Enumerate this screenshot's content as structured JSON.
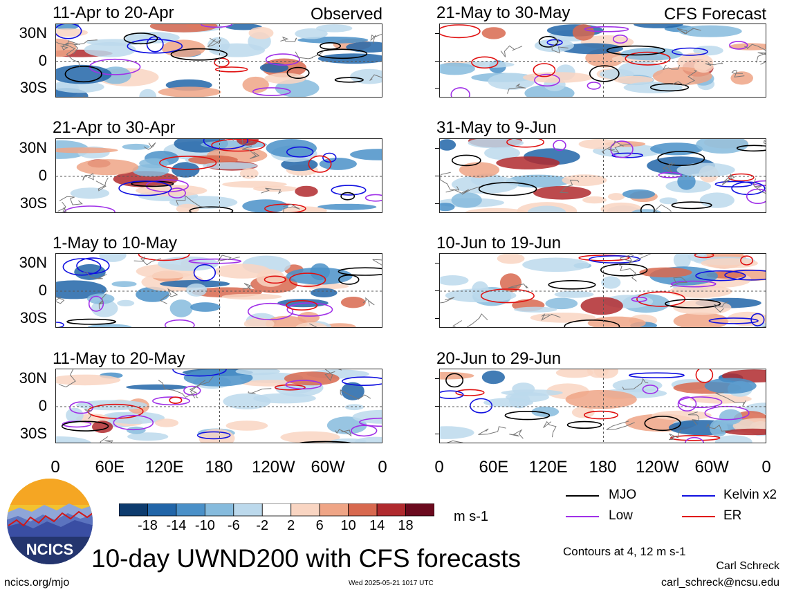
{
  "panels_left": [
    {
      "title": "11-Apr to 20-Apr",
      "tag": "Observed"
    },
    {
      "title": "21-Apr to 30-Apr",
      "tag": ""
    },
    {
      "title": "1-May to 10-May",
      "tag": ""
    },
    {
      "title": "11-May to 20-May",
      "tag": ""
    }
  ],
  "panels_right": [
    {
      "title": "21-May to 30-May",
      "tag": "CFS Forecast"
    },
    {
      "title": "31-May to 9-Jun",
      "tag": ""
    },
    {
      "title": "10-Jun to 19-Jun",
      "tag": ""
    },
    {
      "title": "20-Jun to 29-Jun",
      "tag": ""
    }
  ],
  "lat_labels": [
    "30N",
    "0",
    "30S"
  ],
  "lon_labels": [
    "0",
    "60E",
    "120E",
    "180",
    "120W",
    "60W",
    "0"
  ],
  "colorbar": {
    "labels": [
      "-18",
      "-14",
      "-10",
      "-6",
      "-2",
      "2",
      "6",
      "10",
      "14",
      "18"
    ],
    "colors": [
      "#0d3b6e",
      "#2165a8",
      "#4a90c8",
      "#86bbdd",
      "#bcd9ec",
      "#ffffff",
      "#f9d5c2",
      "#efa586",
      "#d8694f",
      "#b02a2e",
      "#6b0a1e"
    ],
    "units": "m s-1"
  },
  "legend": {
    "mjo": {
      "label": "MJO",
      "color": "#000000"
    },
    "kelvin": {
      "label": "Kelvin x2",
      "color": "#1010e0"
    },
    "low": {
      "label": "Low",
      "color": "#a030e8"
    },
    "er": {
      "label": "ER",
      "color": "#e01010"
    }
  },
  "contours_note": "Contours at 4, 12 m s-1",
  "logo_text": "NCICS",
  "main_title": "10-day UWND200 with CFS forecasts",
  "author": "Carl Schreck",
  "email": "carl_schreck@ncsu.edu",
  "site": "ncics.org/mjo",
  "timestamp": "Wed 2025-05-21 1017 UTC",
  "chart_data": {
    "type": "heatmap",
    "variable": "UWND200",
    "units": "m s-1",
    "x_ticks": [
      "0",
      "60E",
      "120E",
      "180",
      "120W",
      "60W",
      "0"
    ],
    "y_ticks": [
      "30N",
      "0",
      "30S"
    ],
    "color_levels": [
      -18,
      -14,
      -10,
      -6,
      -2,
      2,
      6,
      10,
      14,
      18
    ],
    "contour_levels": [
      4,
      12
    ],
    "filters": [
      "MJO",
      "Kelvin x2",
      "Low",
      "ER"
    ],
    "observed_periods": [
      "11-Apr to 20-Apr",
      "21-Apr to 30-Apr",
      "1-May to 10-May",
      "11-May to 20-May"
    ],
    "forecast_periods": [
      "21-May to 30-May",
      "31-May to 9-Jun",
      "10-Jun to 19-Jun",
      "20-Jun to 29-Jun"
    ]
  }
}
